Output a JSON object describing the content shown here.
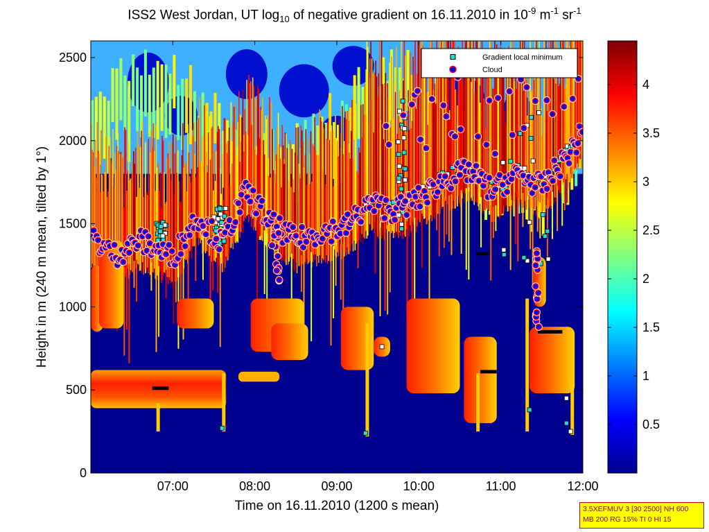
{
  "chart_data": {
    "type": "heatmap",
    "title": {
      "pre": "ISS2 West Jordan, UT log",
      "sub": "10",
      "mid": " of negative gradient on 16.11.2010 in 10",
      "sup1": "-9",
      "unit1": " m",
      "sup2": "-1",
      "unit2": " sr",
      "sup3": "-1"
    },
    "xlabel": "Time on 16.11.2010 (1200 s mean)",
    "ylabel": "Height in m (240 m mean, tilted by 1°)",
    "xlim": [
      "06:00",
      "12:00"
    ],
    "ylim": [
      0,
      2600
    ],
    "x_ticks": [
      "07:00",
      "08:00",
      "09:00",
      "10:00",
      "11:00",
      "12:00"
    ],
    "y_ticks": [
      0,
      500,
      1000,
      1500,
      2000,
      2500
    ],
    "colorbar": {
      "colormap": "jet",
      "range": [
        0,
        4.45
      ],
      "ticks": [
        0.5,
        1,
        1.5,
        2,
        2.5,
        3,
        3.5,
        4
      ]
    },
    "legend": {
      "position": "top-right",
      "entries": [
        {
          "label": "Gradient local minimum",
          "marker": "square",
          "face": "#27d9d9",
          "edge": "#000000"
        },
        {
          "label": "Cloud",
          "marker": "circle",
          "face": "#0000ff",
          "edge": "#ff0000"
        }
      ]
    },
    "layers": {
      "surface_layer": [
        {
          "t": 6.0,
          "bottom": 380,
          "top": 620,
          "level": 3.6
        },
        {
          "t": 6.7,
          "bottom": 430,
          "top": 580,
          "level": 3.4
        },
        {
          "t": 7.2,
          "bottom": 420,
          "top": 620,
          "level": 3.7
        },
        {
          "t": 7.6,
          "bottom": 450,
          "top": 610,
          "level": 3.5
        },
        {
          "t": 8.0,
          "bottom": 520,
          "top": 600,
          "level": 3.0
        },
        {
          "t": 8.5,
          "bottom": 0,
          "top": 0,
          "level": 0
        }
      ],
      "lower_layer_times": [
        6.2,
        6.6,
        7.0,
        7.4,
        7.9,
        8.3,
        8.9,
        9.6,
        10.1,
        10.7,
        11.4,
        11.8
      ],
      "cloud_base": [
        {
          "t": 6.0,
          "h": 1420
        },
        {
          "t": 6.3,
          "h": 1310
        },
        {
          "t": 6.6,
          "h": 1400
        },
        {
          "t": 7.0,
          "h": 1300
        },
        {
          "t": 7.3,
          "h": 1550
        },
        {
          "t": 7.6,
          "h": 1380
        },
        {
          "t": 7.9,
          "h": 1700
        },
        {
          "t": 8.2,
          "h": 1500
        },
        {
          "t": 8.5,
          "h": 1400
        },
        {
          "t": 8.8,
          "h": 1450
        },
        {
          "t": 9.1,
          "h": 1480
        },
        {
          "t": 9.4,
          "h": 1620
        },
        {
          "t": 9.7,
          "h": 1580
        },
        {
          "t": 10.0,
          "h": 1650
        },
        {
          "t": 10.3,
          "h": 1760
        },
        {
          "t": 10.6,
          "h": 1820
        },
        {
          "t": 10.9,
          "h": 1700
        },
        {
          "t": 11.2,
          "h": 1800
        },
        {
          "t": 11.5,
          "h": 1720
        },
        {
          "t": 11.8,
          "h": 1900
        },
        {
          "t": 12.0,
          "h": 2050
        }
      ],
      "gradient_minima_tracks": [
        {
          "t0": 6.75,
          "t1": 6.95,
          "h": 510
        },
        {
          "t0": 10.75,
          "t1": 10.95,
          "h": 610
        },
        {
          "t0": 11.45,
          "t1": 11.75,
          "h": 850
        },
        {
          "t0": 10.7,
          "t1": 10.85,
          "h": 1320
        }
      ]
    }
  },
  "info_box": {
    "line1": "3.5XEFMUV 3 [30 2500] NH 600",
    "line2": "MB 200 RG 15% TI 0 HI 15"
  }
}
